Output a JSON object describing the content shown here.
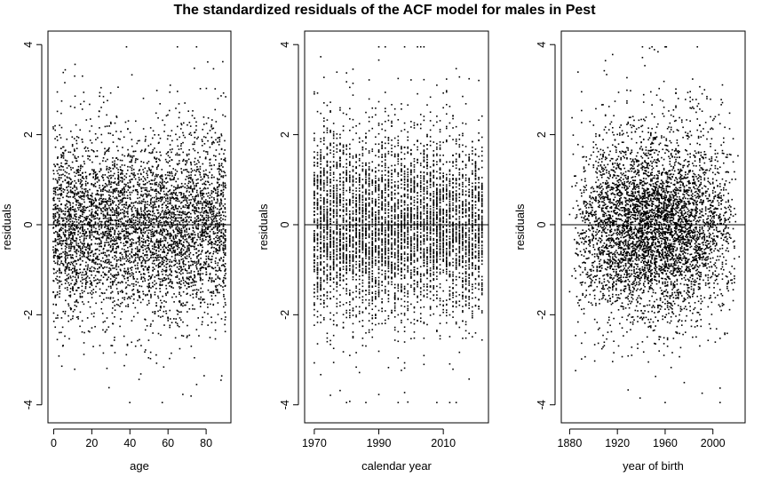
{
  "title": "The standardized residuals of the ACF model for males in Pest",
  "chart_data": [
    {
      "type": "scatter",
      "xlabel": "age",
      "ylabel": "residuals",
      "xlim": [
        -3,
        93
      ],
      "ylim": [
        -4.4,
        4.3
      ],
      "xticks": [
        0,
        20,
        40,
        60,
        80
      ],
      "yticks": [
        -4,
        -2,
        0,
        2,
        4
      ],
      "reference_line_y": 0,
      "grid": false,
      "point_count_approx": 5000,
      "x_range": [
        0,
        90
      ],
      "y_range": [
        -4.0,
        4.0
      ],
      "marker": "black dot"
    },
    {
      "type": "scatter",
      "xlabel": "calendar year",
      "ylabel": "residuals",
      "xlim": [
        1967,
        2024
      ],
      "ylim": [
        -4.4,
        4.3
      ],
      "xticks": [
        1970,
        1990,
        2010
      ],
      "yticks": [
        -4,
        -2,
        0,
        2,
        4
      ],
      "reference_line_y": 0,
      "grid": false,
      "point_count_approx": 5000,
      "x_range": [
        1970,
        2022
      ],
      "y_range": [
        -4.0,
        4.0
      ],
      "marker": "black dot"
    },
    {
      "type": "scatter",
      "xlabel": "year of birth",
      "ylabel": "residuals",
      "xlim": [
        1873,
        2027
      ],
      "ylim": [
        -4.4,
        4.3
      ],
      "xticks": [
        1880,
        1920,
        1960,
        2000
      ],
      "yticks": [
        -4,
        -2,
        0,
        2,
        4
      ],
      "reference_line_y": 0,
      "grid": false,
      "point_count_approx": 5000,
      "x_range": [
        1880,
        2022
      ],
      "y_range": [
        -4.0,
        4.0
      ],
      "marker": "black dot"
    }
  ]
}
